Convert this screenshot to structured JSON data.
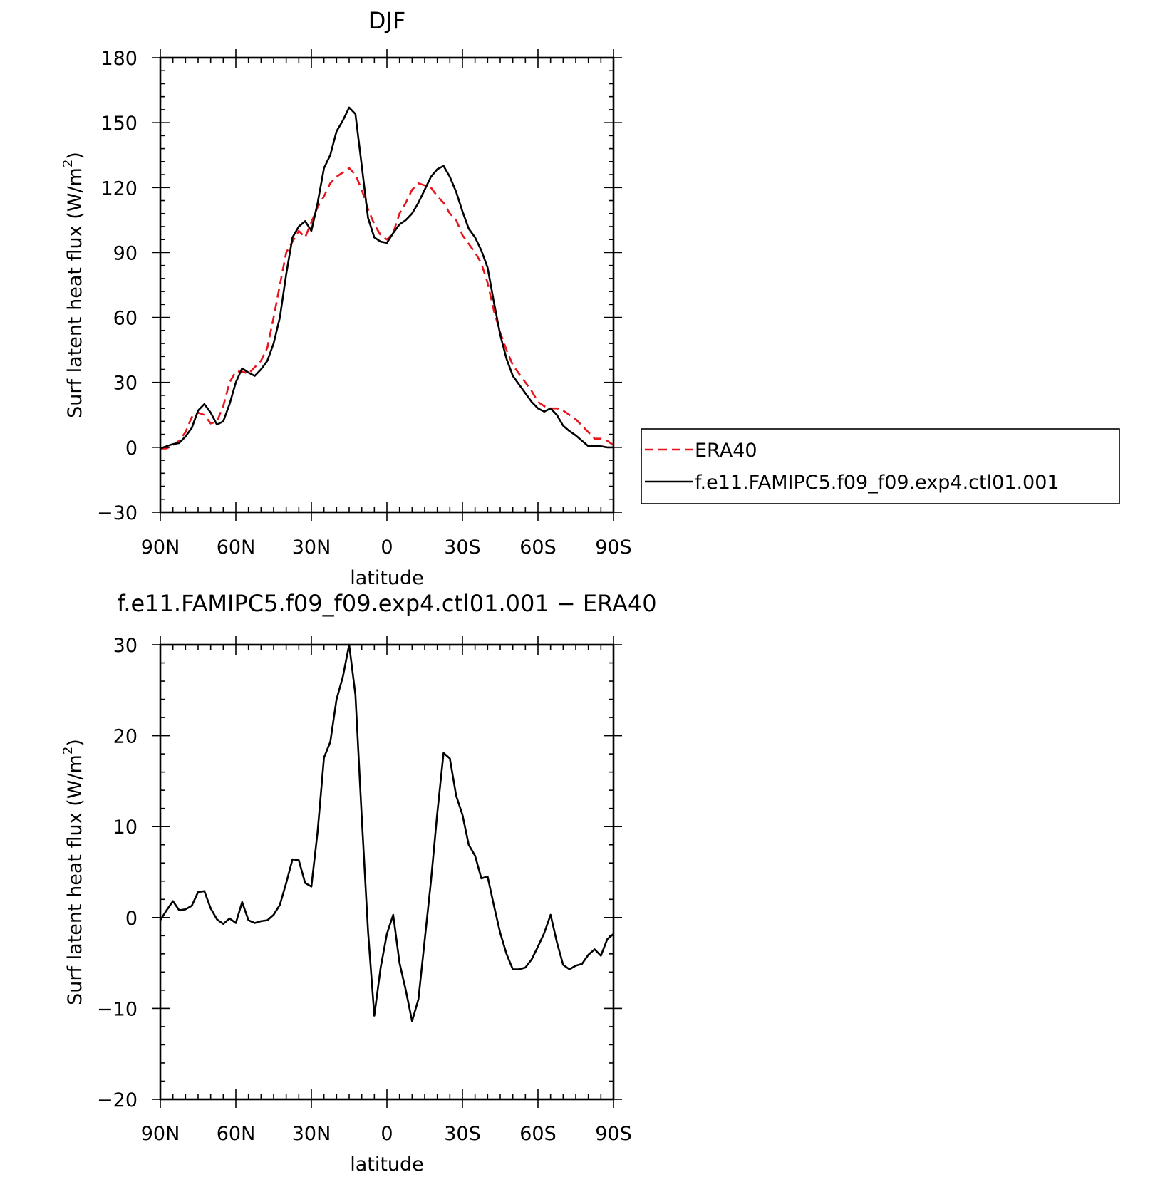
{
  "chart_data": [
    {
      "type": "line",
      "title": "DJF",
      "xlabel": "latitude",
      "ylabel": "Surf latent heat flux (W/m²)",
      "ylabel_main": "Surf latent heat flux (W/m",
      "ylabel_sup": "2",
      "ylabel_close": ")",
      "xlim": [
        90,
        -90
      ],
      "ylim": [
        -30,
        180
      ],
      "x_ticks": [
        {
          "value": 90,
          "label": "90N"
        },
        {
          "value": 60,
          "label": "60N"
        },
        {
          "value": 30,
          "label": "30N"
        },
        {
          "value": 0,
          "label": "0"
        },
        {
          "value": -30,
          "label": "30S"
        },
        {
          "value": -60,
          "label": "60S"
        },
        {
          "value": -90,
          "label": "90S"
        }
      ],
      "y_ticks": [
        {
          "value": -30,
          "label": "−30"
        },
        {
          "value": 0,
          "label": "0"
        },
        {
          "value": 30,
          "label": "30"
        },
        {
          "value": 60,
          "label": "60"
        },
        {
          "value": 90,
          "label": "90"
        },
        {
          "value": 120,
          "label": "120"
        },
        {
          "value": 150,
          "label": "150"
        },
        {
          "value": 180,
          "label": "180"
        }
      ],
      "grid": false,
      "legend_position": "right",
      "series": [
        {
          "name": "ERA40",
          "color": "#e8141b",
          "dash": "dashed",
          "points": [
            [
              90,
              -0.5
            ],
            [
              87.5,
              -0.5
            ],
            [
              85,
              1
            ],
            [
              82.5,
              3
            ],
            [
              80,
              7
            ],
            [
              77.5,
              14
            ],
            [
              75,
              16
            ],
            [
              72.5,
              15
            ],
            [
              70,
              11
            ],
            [
              67.5,
              12
            ],
            [
              65,
              19
            ],
            [
              62.5,
              30
            ],
            [
              60,
              35
            ],
            [
              57.5,
              35
            ],
            [
              55,
              34
            ],
            [
              52.5,
              37
            ],
            [
              50,
              40
            ],
            [
              47.5,
              46
            ],
            [
              45,
              60
            ],
            [
              42.5,
              75
            ],
            [
              40,
              90
            ],
            [
              37.5,
              95
            ],
            [
              35,
              100
            ],
            [
              32.5,
              97
            ],
            [
              30,
              104
            ],
            [
              27.5,
              111
            ],
            [
              25,
              116
            ],
            [
              22.5,
              122
            ],
            [
              20,
              125
            ],
            [
              17.5,
              127
            ],
            [
              15,
              129
            ],
            [
              12.5,
              126
            ],
            [
              10,
              119
            ],
            [
              7.5,
              110
            ],
            [
              5,
              103
            ],
            [
              2.5,
              98
            ],
            [
              0,
              96
            ],
            [
              -2.5,
              99
            ],
            [
              -5,
              108
            ],
            [
              -7.5,
              113
            ],
            [
              -10,
              119
            ],
            [
              -12.5,
              122
            ],
            [
              -15,
              121
            ],
            [
              -17.5,
              120
            ],
            [
              -20,
              116
            ],
            [
              -22.5,
              113
            ],
            [
              -25,
              108
            ],
            [
              -27.5,
              105
            ],
            [
              -30,
              98
            ],
            [
              -32.5,
              94
            ],
            [
              -35,
              90
            ],
            [
              -37.5,
              85
            ],
            [
              -40,
              76
            ],
            [
              -42.5,
              63
            ],
            [
              -45,
              53
            ],
            [
              -47.5,
              45
            ],
            [
              -50,
              38
            ],
            [
              -52.5,
              34
            ],
            [
              -55,
              30
            ],
            [
              -57.5,
              26
            ],
            [
              -60,
              21
            ],
            [
              -62.5,
              19
            ],
            [
              -65,
              18
            ],
            [
              -67.5,
              18
            ],
            [
              -70,
              17
            ],
            [
              -72.5,
              15
            ],
            [
              -75,
              13
            ],
            [
              -77.5,
              10
            ],
            [
              -80,
              7
            ],
            [
              -82.5,
              4
            ],
            [
              -85,
              4
            ],
            [
              -87.5,
              3
            ],
            [
              -90,
              1
            ]
          ]
        },
        {
          "name": "f.e11.FAMIPC5.f09_f09.exp4.ctl01.001",
          "color": "#000000",
          "dash": "solid",
          "points": [
            [
              90,
              -0.5
            ],
            [
              87.5,
              0.5
            ],
            [
              85,
              1.5
            ],
            [
              82.5,
              2
            ],
            [
              80,
              5
            ],
            [
              77.5,
              9
            ],
            [
              75,
              17
            ],
            [
              72.5,
              20
            ],
            [
              70,
              16
            ],
            [
              67.5,
              10.5
            ],
            [
              65,
              12
            ],
            [
              62.5,
              20
            ],
            [
              60,
              30
            ],
            [
              57.5,
              36.5
            ],
            [
              55,
              34.5
            ],
            [
              52.5,
              33
            ],
            [
              50,
              36
            ],
            [
              47.5,
              40
            ],
            [
              45,
              48
            ],
            [
              42.5,
              60
            ],
            [
              40,
              80
            ],
            [
              37.5,
              97
            ],
            [
              35,
              102
            ],
            [
              32.5,
              104.5
            ],
            [
              30,
              100
            ],
            [
              27.5,
              113
            ],
            [
              25,
              129
            ],
            [
              22.5,
              135
            ],
            [
              20,
              146
            ],
            [
              17.5,
              151
            ],
            [
              15,
              157
            ],
            [
              12.5,
              154
            ],
            [
              10,
              130
            ],
            [
              7.5,
              106
            ],
            [
              5,
              97
            ],
            [
              2.5,
              95
            ],
            [
              0,
              94.5
            ],
            [
              -2.5,
              99
            ],
            [
              -5,
              103
            ],
            [
              -7.5,
              105
            ],
            [
              -10,
              108
            ],
            [
              -12.5,
              113
            ],
            [
              -15,
              119
            ],
            [
              -17.5,
              125
            ],
            [
              -20,
              128.5
            ],
            [
              -22.5,
              130
            ],
            [
              -25,
              125
            ],
            [
              -27.5,
              118
            ],
            [
              -30,
              109
            ],
            [
              -32.5,
              101
            ],
            [
              -35,
              97
            ],
            [
              -37.5,
              91
            ],
            [
              -40,
              83
            ],
            [
              -42.5,
              67
            ],
            [
              -45,
              52
            ],
            [
              -47.5,
              41
            ],
            [
              -50,
              33
            ],
            [
              -52.5,
              29
            ],
            [
              -55,
              25
            ],
            [
              -57.5,
              21
            ],
            [
              -60,
              18
            ],
            [
              -62.5,
              16.5
            ],
            [
              -65,
              18
            ],
            [
              -67.5,
              15
            ],
            [
              -70,
              10
            ],
            [
              -72.5,
              7.5
            ],
            [
              -75,
              5.5
            ],
            [
              -77.5,
              3
            ],
            [
              -80,
              0.5
            ],
            [
              -82.5,
              0.5
            ],
            [
              -85,
              0.5
            ],
            [
              -87.5,
              0
            ],
            [
              -90,
              0
            ]
          ]
        }
      ],
      "legend_entries": [
        {
          "label": "ERA40"
        },
        {
          "label": "f.e11.FAMIPC5.f09_f09.exp4.ctl01.001"
        }
      ]
    },
    {
      "type": "line",
      "title": "f.e11.FAMIPC5.f09_f09.exp4.ctl01.001 − ERA40",
      "xlabel": "latitude",
      "ylabel": "Surf latent heat flux (W/m²)",
      "ylabel_main": "Surf latent heat flux (W/m",
      "ylabel_sup": "2",
      "ylabel_close": ")",
      "xlim": [
        90,
        -90
      ],
      "ylim": [
        -20,
        30
      ],
      "x_ticks": [
        {
          "value": 90,
          "label": "90N"
        },
        {
          "value": 60,
          "label": "60N"
        },
        {
          "value": 30,
          "label": "30N"
        },
        {
          "value": 0,
          "label": "0"
        },
        {
          "value": -30,
          "label": "30S"
        },
        {
          "value": -60,
          "label": "60S"
        },
        {
          "value": -90,
          "label": "90S"
        }
      ],
      "y_ticks": [
        {
          "value": -20,
          "label": "−20"
        },
        {
          "value": -10,
          "label": "−10"
        },
        {
          "value": 0,
          "label": "0"
        },
        {
          "value": 10,
          "label": "10"
        },
        {
          "value": 20,
          "label": "20"
        },
        {
          "value": 30,
          "label": "30"
        }
      ],
      "grid": false,
      "series": [
        {
          "name": "",
          "color": "#000000",
          "dash": "solid",
          "points": [
            [
              90,
              -0.3
            ],
            [
              87.5,
              0.8
            ],
            [
              85,
              1.8
            ],
            [
              82.5,
              0.8
            ],
            [
              80,
              0.9
            ],
            [
              77.5,
              1.3
            ],
            [
              75,
              2.8
            ],
            [
              72.5,
              2.9
            ],
            [
              70,
              1
            ],
            [
              67.5,
              -0.2
            ],
            [
              65,
              -0.7
            ],
            [
              62.5,
              -0.1
            ],
            [
              60,
              -0.6
            ],
            [
              57.5,
              1.7
            ],
            [
              55,
              -0.3
            ],
            [
              52.5,
              -0.6
            ],
            [
              50,
              -0.4
            ],
            [
              47.5,
              -0.3
            ],
            [
              45,
              0.3
            ],
            [
              42.5,
              1.4
            ],
            [
              40,
              3.8
            ],
            [
              37.5,
              6.4
            ],
            [
              35,
              6.3
            ],
            [
              32.5,
              3.8
            ],
            [
              30,
              3.4
            ],
            [
              27.5,
              9.5
            ],
            [
              25,
              17.6
            ],
            [
              22.5,
              19.3
            ],
            [
              20,
              24
            ],
            [
              17.5,
              26.5
            ],
            [
              15,
              30
            ],
            [
              12.5,
              24.5
            ],
            [
              10,
              11
            ],
            [
              7.5,
              -1.5
            ],
            [
              5,
              -10.8
            ],
            [
              2.5,
              -5.5
            ],
            [
              0,
              -1.8
            ],
            [
              -2.5,
              0.3
            ],
            [
              -5,
              -5
            ],
            [
              -7.5,
              -8
            ],
            [
              -10,
              -11.4
            ],
            [
              -12.5,
              -9
            ],
            [
              -15,
              -2.5
            ],
            [
              -17.5,
              4
            ],
            [
              -20,
              11.5
            ],
            [
              -22.5,
              18.1
            ],
            [
              -25,
              17.5
            ],
            [
              -27.5,
              13.4
            ],
            [
              -30,
              11.3
            ],
            [
              -32.5,
              8
            ],
            [
              -35,
              6.8
            ],
            [
              -37.5,
              4.3
            ],
            [
              -40,
              4.5
            ],
            [
              -42.5,
              1.3
            ],
            [
              -45,
              -1.7
            ],
            [
              -47.5,
              -4
            ],
            [
              -50,
              -5.7
            ],
            [
              -52.5,
              -5.7
            ],
            [
              -55,
              -5.5
            ],
            [
              -57.5,
              -4.6
            ],
            [
              -60,
              -3.2
            ],
            [
              -62.5,
              -1.7
            ],
            [
              -65,
              0.3
            ],
            [
              -67.5,
              -2.7
            ],
            [
              -70,
              -5.2
            ],
            [
              -72.5,
              -5.7
            ],
            [
              -75,
              -5.3
            ],
            [
              -77.5,
              -5.1
            ],
            [
              -80,
              -4.1
            ],
            [
              -82.5,
              -3.5
            ],
            [
              -85,
              -4.2
            ],
            [
              -87.5,
              -2.4
            ],
            [
              -90,
              -1.8
            ]
          ]
        }
      ]
    }
  ]
}
